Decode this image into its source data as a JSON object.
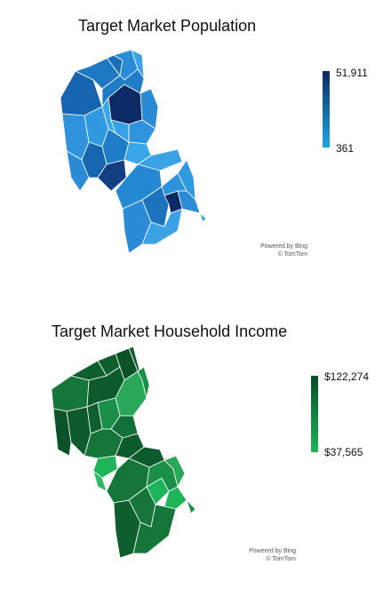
{
  "maps": [
    {
      "id": "population",
      "title": "Target Market Population",
      "legend": {
        "max": "51,911",
        "min": "361",
        "color_max": "#0b2a66",
        "color_min": "#19a9e6"
      },
      "attribution": {
        "line1": "Powered by Bing",
        "line2": "© TomTom"
      }
    },
    {
      "id": "income",
      "title": "Target Market Household Income",
      "legend": {
        "max": "$122,274",
        "min": "$37,565",
        "color_max": "#0a4a24",
        "color_min": "#1db45a"
      },
      "attribution": {
        "line1": "Powered by Bing",
        "line2": "© TomTom"
      }
    }
  ]
}
